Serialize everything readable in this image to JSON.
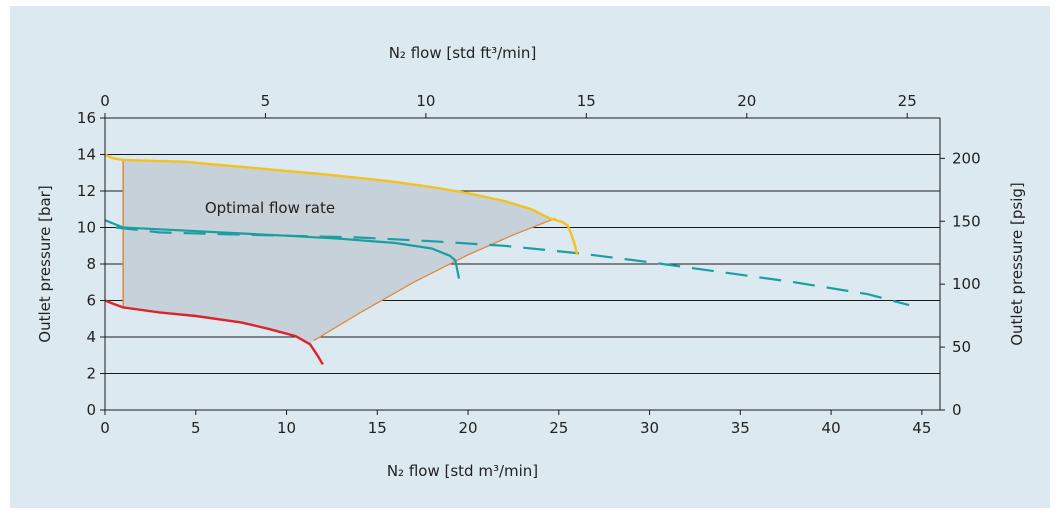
{
  "chart_data": {
    "type": "line",
    "title": "",
    "xlabel_bottom": "N₂ flow [std m³/min]",
    "xlabel_top": "N₂ flow [std ft³/min]",
    "ylabel_left": "Outlet pressure [bar]",
    "ylabel_right": "Outlet pressure [psig]",
    "x_bottom_range": [
      0,
      46
    ],
    "x_bottom_ticks": [
      "0",
      "5",
      "10",
      "15",
      "20",
      "25",
      "30",
      "35",
      "40",
      "45"
    ],
    "x_top_ticks": [
      "0",
      "5",
      "10",
      "15",
      "20",
      "25"
    ],
    "y_left_range": [
      0,
      16
    ],
    "y_left_ticks": [
      "0",
      "2",
      "4",
      "6",
      "8",
      "10",
      "12",
      "14",
      "16"
    ],
    "y_right_ticks": [
      "0",
      "50",
      "100",
      "150",
      "200"
    ],
    "grid": "horizontal",
    "annotation": "Optimal flow rate",
    "colors": {
      "panel": "#dde9f1",
      "region": "#c7d1d9",
      "yellow": "#f2c220",
      "teal": "#1a9fa0",
      "red": "#d9262b",
      "orange": "#e08a3c"
    },
    "series": [
      {
        "style": "yellow-solid",
        "x": [
          0,
          0.4,
          1.0,
          2.8,
          4.5,
          6,
          8,
          10,
          12,
          14,
          16,
          18,
          20,
          22,
          23.5,
          24.5,
          25.2,
          25.5,
          25.7,
          25.9,
          26.0
        ],
        "y": [
          14.0,
          13.8,
          13.7,
          13.65,
          13.6,
          13.45,
          13.28,
          13.1,
          12.92,
          12.72,
          12.5,
          12.22,
          11.88,
          11.45,
          11.0,
          10.5,
          10.3,
          10.1,
          9.6,
          9.0,
          8.5
        ]
      },
      {
        "style": "teal-solid",
        "x": [
          0,
          0.5,
          1.0,
          4,
          7,
          10,
          13,
          16,
          18,
          19.0,
          19.3,
          19.4,
          19.5
        ],
        "y": [
          10.4,
          10.2,
          10.0,
          9.85,
          9.7,
          9.55,
          9.38,
          9.15,
          8.85,
          8.45,
          8.2,
          7.7,
          7.2
        ]
      },
      {
        "style": "teal-dashed",
        "x": [
          0.6,
          3,
          6,
          10,
          14,
          18,
          22,
          26,
          30,
          34,
          38,
          42,
          44.3
        ],
        "y": [
          10.0,
          9.73,
          9.65,
          9.55,
          9.45,
          9.25,
          9.0,
          8.6,
          8.1,
          7.55,
          7.0,
          6.35,
          5.75
        ]
      },
      {
        "style": "red-solid",
        "x": [
          0,
          0.5,
          1.0,
          3,
          5,
          7.5,
          9,
          10.5,
          11.3,
          11.7,
          12.0
        ],
        "y": [
          6.0,
          5.8,
          5.62,
          5.35,
          5.15,
          4.8,
          4.45,
          4.05,
          3.6,
          3.0,
          2.5
        ]
      },
      {
        "style": "orange-boundary",
        "x": [
          1.0,
          1.0,
          11.5,
          14,
          17,
          20,
          22.5,
          24.8
        ],
        "y": [
          5.62,
          13.7,
          3.8,
          5.3,
          7.0,
          8.5,
          9.6,
          10.5
        ]
      }
    ]
  }
}
